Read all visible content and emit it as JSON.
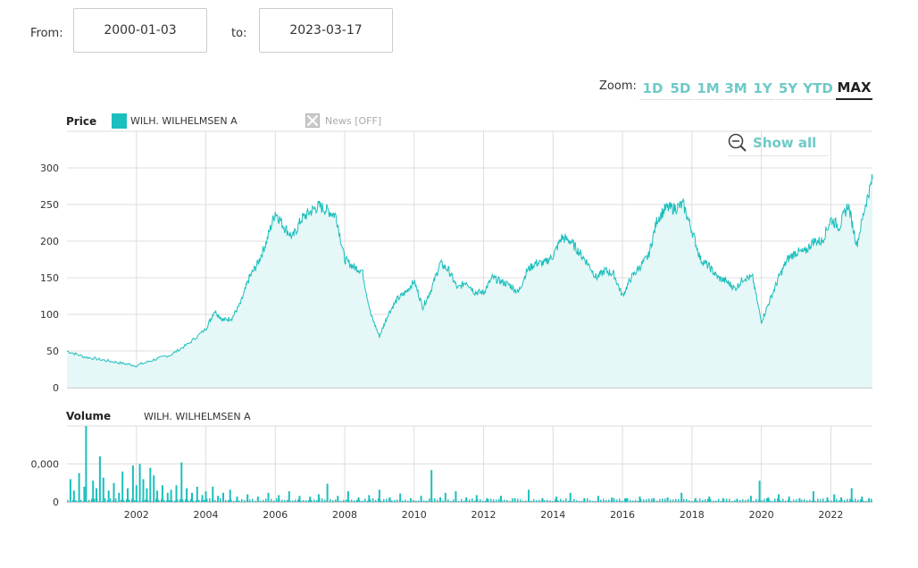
{
  "range": {
    "from_label": "From:",
    "from_value": "2000-01-03",
    "to_label": "to:",
    "to_value": "2023-03-17"
  },
  "zoom": {
    "label": "Zoom:",
    "buttons": [
      "1D",
      "5D",
      "1M",
      "3M",
      "1Y",
      "5Y",
      "YTD",
      "MAX"
    ],
    "active": "MAX"
  },
  "legend": {
    "price_title": "Price",
    "series_name": "WILH. WILHELMSEN A",
    "news_label": "News [OFF]",
    "volume_title": "Volume",
    "volume_series_name": "WILH. WILHELMSEN A"
  },
  "show_all_label": "Show all",
  "colors": {
    "series": "#1bbfbd",
    "area_fill": "#e5f7f6",
    "grid": "#dddddd",
    "accent": "#6fc9c7"
  },
  "icons": {
    "news_toggle": "close-icon",
    "show_all": "zoom-out-icon"
  },
  "chart_data": [
    {
      "type": "area",
      "title": "Price",
      "series": [
        {
          "name": "WILH. WILHELMSEN A",
          "x": [
            2000.0,
            2000.5,
            2001.0,
            2001.5,
            2002.0,
            2002.5,
            2003.0,
            2003.5,
            2004.0,
            2004.25,
            2004.5,
            2004.75,
            2005.0,
            2005.25,
            2005.5,
            2005.75,
            2006.0,
            2006.25,
            2006.5,
            2006.75,
            2007.0,
            2007.25,
            2007.5,
            2007.75,
            2008.0,
            2008.25,
            2008.5,
            2008.75,
            2009.0,
            2009.25,
            2009.5,
            2009.75,
            2010.0,
            2010.25,
            2010.5,
            2010.75,
            2011.0,
            2011.25,
            2011.5,
            2011.75,
            2012.0,
            2012.25,
            2012.5,
            2012.75,
            2013.0,
            2013.25,
            2013.5,
            2013.75,
            2014.0,
            2014.25,
            2014.5,
            2014.75,
            2015.0,
            2015.25,
            2015.5,
            2015.75,
            2016.0,
            2016.25,
            2016.5,
            2016.75,
            2017.0,
            2017.25,
            2017.5,
            2017.75,
            2018.0,
            2018.25,
            2018.5,
            2018.75,
            2019.0,
            2019.25,
            2019.5,
            2019.75,
            2020.0,
            2020.25,
            2020.5,
            2020.75,
            2021.0,
            2021.25,
            2021.5,
            2021.75,
            2022.0,
            2022.25,
            2022.5,
            2022.75,
            2023.0,
            2023.2
          ],
          "values": [
            50,
            42,
            38,
            34,
            30,
            38,
            45,
            60,
            80,
            105,
            92,
            95,
            115,
            150,
            170,
            200,
            240,
            220,
            205,
            230,
            240,
            248,
            242,
            235,
            175,
            165,
            160,
            100,
            70,
            100,
            120,
            130,
            145,
            110,
            135,
            170,
            160,
            135,
            145,
            130,
            130,
            150,
            145,
            140,
            130,
            160,
            170,
            170,
            180,
            205,
            200,
            185,
            170,
            150,
            160,
            155,
            125,
            150,
            165,
            180,
            230,
            245,
            245,
            250,
            215,
            175,
            165,
            150,
            145,
            135,
            150,
            150,
            90,
            120,
            150,
            175,
            185,
            185,
            200,
            200,
            230,
            220,
            250,
            195,
            250,
            285
          ]
        }
      ],
      "xlim": [
        2000,
        2023.2
      ],
      "ylim": [
        0,
        350
      ],
      "yticks": [
        0,
        50,
        100,
        150,
        200,
        250,
        300
      ],
      "grid": true
    },
    {
      "type": "bar",
      "title": "Volume",
      "series": [
        {
          "name": "WILH. WILHELMSEN A",
          "x": [
            2000.1,
            2000.2,
            2000.35,
            2000.5,
            2000.55,
            2000.75,
            2000.85,
            2000.95,
            2001.05,
            2001.2,
            2001.35,
            2001.5,
            2001.6,
            2001.75,
            2001.9,
            2002.0,
            2002.1,
            2002.2,
            2002.3,
            2002.4,
            2002.5,
            2002.6,
            2002.75,
            2002.9,
            2003.0,
            2003.15,
            2003.3,
            2003.45,
            2003.6,
            2003.75,
            2003.9,
            2004.0,
            2004.2,
            2004.35,
            2004.5,
            2004.7,
            2004.9,
            2005.2,
            2005.5,
            2005.8,
            2006.1,
            2006.4,
            2006.7,
            2007.0,
            2007.25,
            2007.5,
            2007.8,
            2008.1,
            2008.4,
            2008.7,
            2009.0,
            2009.3,
            2009.6,
            2009.9,
            2010.2,
            2010.5,
            2010.75,
            2010.9,
            2011.2,
            2011.5,
            2011.8,
            2012.1,
            2012.5,
            2012.9,
            2013.3,
            2013.7,
            2014.1,
            2014.5,
            2014.9,
            2015.3,
            2015.7,
            2016.1,
            2016.5,
            2016.9,
            2017.3,
            2017.7,
            2018.1,
            2018.5,
            2018.9,
            2019.3,
            2019.7,
            2019.95,
            2020.2,
            2020.5,
            2020.8,
            2021.1,
            2021.5,
            2021.9,
            2022.1,
            2022.3,
            2022.6,
            2022.9,
            2023.1
          ],
          "values": [
            30000,
            15000,
            38000,
            20000,
            100000,
            28000,
            18000,
            60000,
            32000,
            15000,
            25000,
            12000,
            40000,
            18000,
            48000,
            22000,
            50000,
            30000,
            18000,
            45000,
            35000,
            15000,
            22000,
            12000,
            16000,
            22000,
            52000,
            18000,
            12000,
            20000,
            9000,
            14000,
            20000,
            8000,
            12000,
            16000,
            7000,
            10000,
            7000,
            12000,
            9000,
            14000,
            8000,
            7000,
            10000,
            24000,
            8000,
            14000,
            6000,
            9000,
            16000,
            6000,
            11000,
            5000,
            8000,
            42000,
            6000,
            12000,
            14000,
            6000,
            9000,
            5000,
            8000,
            5000,
            16000,
            5000,
            7000,
            12000,
            5000,
            8000,
            6000,
            5000,
            7000,
            5000,
            6000,
            12000,
            5000,
            7000,
            5000,
            4000,
            8000,
            28000,
            6000,
            10000,
            7000,
            5000,
            14000,
            6000,
            10000,
            6000,
            18000,
            7000,
            5000
          ]
        }
      ],
      "xticks": [
        "2002",
        "2004",
        "2006",
        "2008",
        "2010",
        "2012",
        "2014",
        "2016",
        "2018",
        "2020",
        "2022"
      ],
      "yticks": [
        "0",
        "0,000"
      ],
      "ylim": [
        0,
        100000
      ],
      "grid": true
    }
  ]
}
